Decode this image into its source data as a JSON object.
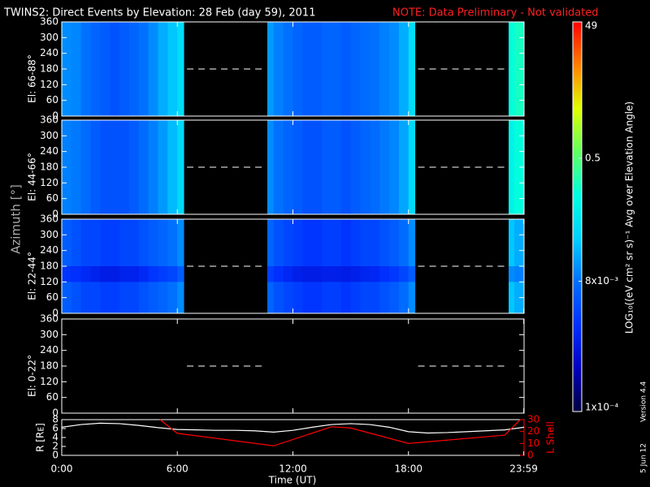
{
  "chart_data": {
    "type": "spectrogram",
    "title": "TWINS2: Direct Events by Elevation: 28 Feb (day  59), 2011",
    "note": "NOTE: Data Preliminary - Not validated",
    "note_color": "#ff2020",
    "xlabel": "Time (UT)",
    "xlim": [
      0,
      24
    ],
    "xticks": [
      {
        "value": 0,
        "label": "0:00"
      },
      {
        "value": 6,
        "label": "6:00"
      },
      {
        "value": 12,
        "label": "12:00"
      },
      {
        "value": 18,
        "label": "18:00"
      },
      {
        "value": 23.983,
        "label": "23:59"
      }
    ],
    "ylabel": "Azimuth [°]",
    "ylim": [
      0,
      360
    ],
    "yticks": [
      0,
      60,
      120,
      180,
      240,
      300,
      360
    ],
    "time_bins": [
      [
        0,
        0.5,
        1,
        1.5,
        2,
        2.5,
        3,
        3.5,
        4,
        4.5,
        5,
        5.5,
        6,
        6.33
      ],
      [
        10.67,
        11,
        11.5,
        12,
        12.5,
        13,
        13.5,
        14,
        14.5,
        15,
        15.5,
        16,
        16.5,
        17,
        17.5,
        18,
        18.33
      ],
      [
        23.2,
        23.5,
        24
      ]
    ],
    "panels": [
      {
        "label": "El: 66-88°",
        "z": [
          [
            0.012,
            0.011,
            0.008,
            0.006,
            0.005,
            0.004,
            0.005,
            0.006,
            0.008,
            0.012,
            0.02,
            0.03,
            0.05
          ],
          [
            0.015,
            0.01,
            0.008,
            0.006,
            0.005,
            0.005,
            0.006,
            0.006,
            0.005,
            0.006,
            0.007,
            0.008,
            0.01,
            0.012,
            0.02,
            0.05
          ],
          [
            0.15,
            0.2
          ]
        ]
      },
      {
        "label": "El: 44-66°",
        "z": [
          [
            0.01,
            0.009,
            0.007,
            0.005,
            0.004,
            0.004,
            0.004,
            0.005,
            0.007,
            0.01,
            0.015,
            0.025,
            0.045
          ],
          [
            0.012,
            0.008,
            0.006,
            0.005,
            0.004,
            0.004,
            0.005,
            0.005,
            0.004,
            0.005,
            0.006,
            0.007,
            0.009,
            0.011,
            0.018,
            0.045
          ],
          [
            0.1,
            0.15
          ]
        ]
      },
      {
        "label": "El: 22-44°",
        "z": [
          [
            0.005,
            0.004,
            0.003,
            0.003,
            0.0025,
            0.0025,
            0.003,
            0.003,
            0.004,
            0.005,
            0.006,
            0.008,
            0.012
          ],
          [
            0.006,
            0.004,
            0.003,
            0.0025,
            0.002,
            0.002,
            0.0025,
            0.0025,
            0.002,
            0.0025,
            0.003,
            0.003,
            0.004,
            0.005,
            0.007,
            0.012
          ],
          [
            0.03,
            0.02
          ]
        ],
        "band": {
          "ylim": [
            120,
            180
          ],
          "z": [
            [
              0.002,
              0.0018,
              0.0015,
              0.0012,
              0.001,
              0.001,
              0.0012,
              0.0012,
              0.0015,
              0.002,
              0.0025,
              0.003,
              0.005
            ],
            [
              0.0025,
              0.0018,
              0.0014,
              0.0011,
              0.001,
              0.001,
              0.0011,
              0.0011,
              0.001,
              0.0011,
              0.0013,
              0.0014,
              0.0018,
              0.0022,
              0.003,
              0.005
            ],
            [
              0.012,
              0.01
            ]
          ]
        }
      },
      {
        "label": "El: 0-22°",
        "z": [
          [],
          [],
          []
        ]
      }
    ],
    "colorbar": {
      "label": "LOG₁₀((eV cm² sr s)⁻¹ Avg over Elevation Angle)",
      "scale": "log",
      "lim": [
        0.0001,
        49
      ],
      "ticks": [
        49,
        0.5,
        {
          "value": 0.008,
          "label": "8x10⁻³"
        },
        {
          "value": 0.0001,
          "label": "1x10⁻⁴"
        }
      ],
      "colors": [
        "#000040",
        "#0000c0",
        "#0030ff",
        "#0070ff",
        "#00d0ff",
        "#00ffe0",
        "#60ff60",
        "#e0ff00",
        "#ff8000",
        "#ff0000"
      ]
    },
    "orbit": {
      "type": "line",
      "ylabel": "R [Rᴇ]",
      "ylim": [
        0,
        8
      ],
      "yticks": [
        0,
        2,
        4,
        6,
        8
      ],
      "y2label": "L Shell",
      "y2lim": [
        0,
        30
      ],
      "y2ticks": [
        0,
        10,
        20,
        30
      ],
      "series": [
        {
          "color": "#ffffff",
          "x": [
            0,
            1,
            2,
            3,
            4,
            5,
            6,
            7,
            8,
            9,
            10,
            11,
            12,
            13,
            14,
            15,
            16,
            17,
            18,
            19,
            20,
            21,
            22,
            23,
            24
          ],
          "values": [
            6.3,
            6.9,
            7.2,
            7.1,
            6.7,
            6.2,
            5.8,
            5.7,
            5.6,
            5.6,
            5.5,
            5.2,
            5.6,
            6.3,
            6.9,
            7.1,
            6.9,
            6.3,
            5.3,
            5.0,
            5.1,
            5.3,
            5.5,
            5.7,
            6.3
          ]
        },
        {
          "color": "#ff0000",
          "axis": "y2",
          "x": [
            5.1,
            6,
            11,
            14,
            15,
            18,
            23,
            23.8
          ],
          "values": [
            30,
            18.5,
            8,
            24,
            23,
            10,
            17,
            30
          ]
        }
      ]
    },
    "footer": {
      "date": "5 Jun 12",
      "version": "Version 4.4"
    }
  }
}
